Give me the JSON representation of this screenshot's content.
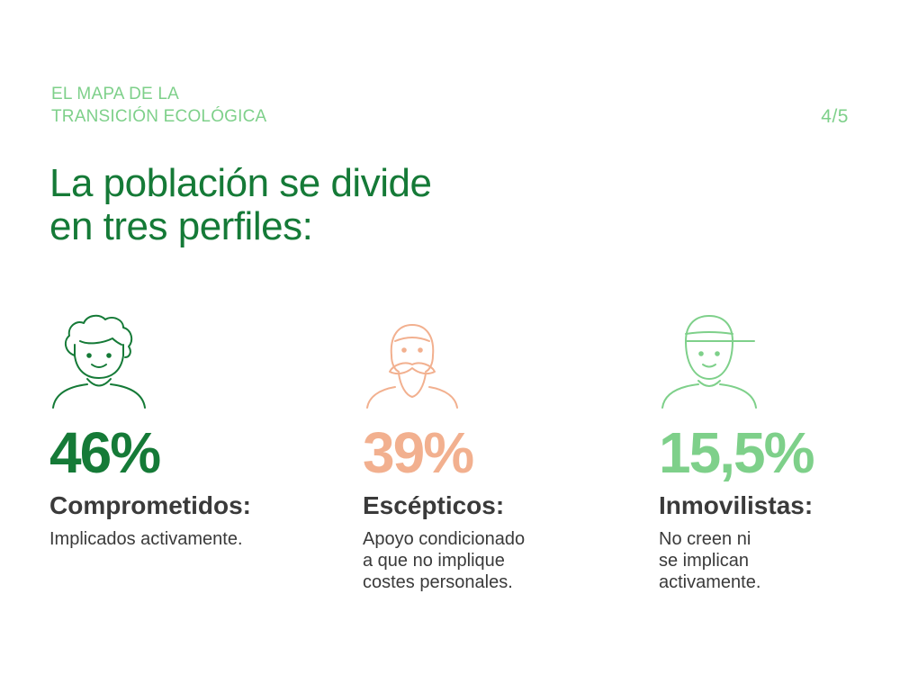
{
  "header": {
    "eyebrow_lines": [
      "EL MAPA DE LA",
      "TRANSICIÓN ECOLÓGICA"
    ],
    "page_indicator": "4/5"
  },
  "headline_lines": [
    "La población se divide",
    "en tres perfiles:"
  ],
  "colors": {
    "dark_green": "#157a37",
    "light_green": "#7ed08a",
    "peach": "#f2b08f",
    "text": "#3a3a3a"
  },
  "profiles": [
    {
      "icon": "person-curly-hair-icon",
      "percentage": "46%",
      "label": "Comprometidos:",
      "description_lines": [
        "Implicados activamente."
      ],
      "color": "#157a37"
    },
    {
      "icon": "person-beard-icon",
      "percentage": "39%",
      "label": "Escépticos:",
      "description_lines": [
        "Apoyo condicionado",
        "a que no implique",
        "costes personales."
      ],
      "color": "#f2b08f"
    },
    {
      "icon": "person-cap-icon",
      "percentage": "15,5%",
      "label": "Inmovilistas:",
      "description_lines": [
        "No creen ni",
        "se implican",
        "activamente."
      ],
      "color": "#7ed08a"
    }
  ]
}
